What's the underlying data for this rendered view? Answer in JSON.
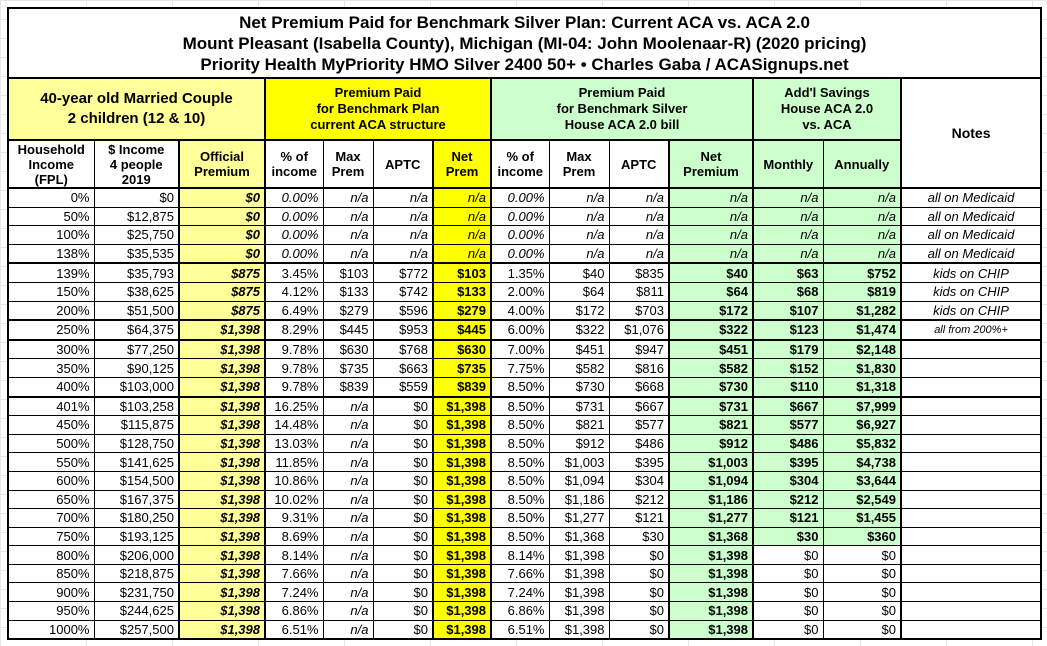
{
  "chart_data": {
    "type": "table",
    "title_lines": [
      "Net Premium Paid for Benchmark Silver Plan: Current ACA vs. ACA 2.0",
      "Mount Pleasant (Isabella County), Michigan (MI-04: John Moolenaar-R) (2020 pricing)",
      "Priority Health MyPriority HMO Silver 2400 50+ • Charles Gaba / ACASignups.net"
    ],
    "group_headers": {
      "household": "40-year old Married Couple\n2 children (12 & 10)",
      "current_aca": "Premium Paid\nfor Benchmark Plan\ncurrent ACA structure",
      "aca20": "Premium Paid\nfor Benchmark Silver\nHouse ACA 2.0 bill",
      "savings": "Add'l Savings\nHouse ACA 2.0\nvs. ACA",
      "notes": "Notes"
    },
    "columns": [
      "Household\nIncome\n(FPL)",
      "$ Income\n4 people\n2019",
      "Official\nPremium",
      "% of\nincome",
      "Max\nPrem",
      "APTC",
      "Net\nPrem",
      "% of\nincome",
      "Max\nPrem",
      "APTC",
      "Net\nPremium",
      "Monthly",
      "Annually"
    ],
    "rows": [
      {
        "fpl": "0%",
        "income": "$0",
        "official": "$0",
        "pct1": "0.00%",
        "max1": "n/a",
        "aptc1": "n/a",
        "net1": "n/a",
        "pct2": "0.00%",
        "max2": "n/a",
        "aptc2": "n/a",
        "net2": "n/a",
        "monthly": "n/a",
        "annually": "n/a",
        "note": "all on Medicaid",
        "na": true
      },
      {
        "fpl": "50%",
        "income": "$12,875",
        "official": "$0",
        "pct1": "0.00%",
        "max1": "n/a",
        "aptc1": "n/a",
        "net1": "n/a",
        "pct2": "0.00%",
        "max2": "n/a",
        "aptc2": "n/a",
        "net2": "n/a",
        "monthly": "n/a",
        "annually": "n/a",
        "note": "all on Medicaid",
        "na": true
      },
      {
        "fpl": "100%",
        "income": "$25,750",
        "official": "$0",
        "pct1": "0.00%",
        "max1": "n/a",
        "aptc1": "n/a",
        "net1": "n/a",
        "pct2": "0.00%",
        "max2": "n/a",
        "aptc2": "n/a",
        "net2": "n/a",
        "monthly": "n/a",
        "annually": "n/a",
        "note": "all on Medicaid",
        "na": true
      },
      {
        "fpl": "138%",
        "income": "$35,535",
        "official": "$0",
        "pct1": "0.00%",
        "max1": "n/a",
        "aptc1": "n/a",
        "net1": "n/a",
        "pct2": "0.00%",
        "max2": "n/a",
        "aptc2": "n/a",
        "net2": "n/a",
        "monthly": "n/a",
        "annually": "n/a",
        "note": "all on Medicaid",
        "na": true,
        "group_end": true
      },
      {
        "fpl": "139%",
        "income": "$35,793",
        "official": "$875",
        "pct1": "3.45%",
        "max1": "$103",
        "aptc1": "$772",
        "net1": "$103",
        "pct2": "1.35%",
        "max2": "$40",
        "aptc2": "$835",
        "net2": "$40",
        "monthly": "$63",
        "annually": "$752",
        "note": "kids on CHIP"
      },
      {
        "fpl": "150%",
        "income": "$38,625",
        "official": "$875",
        "pct1": "4.12%",
        "max1": "$133",
        "aptc1": "$742",
        "net1": "$133",
        "pct2": "2.00%",
        "max2": "$64",
        "aptc2": "$811",
        "net2": "$64",
        "monthly": "$68",
        "annually": "$819",
        "note": "kids on CHIP"
      },
      {
        "fpl": "200%",
        "income": "$51,500",
        "official": "$875",
        "pct1": "6.49%",
        "max1": "$279",
        "aptc1": "$596",
        "net1": "$279",
        "pct2": "4.00%",
        "max2": "$172",
        "aptc2": "$703",
        "net2": "$172",
        "monthly": "$107",
        "annually": "$1,282",
        "note": "kids on CHIP",
        "group_end": true
      },
      {
        "fpl": "250%",
        "income": "$64,375",
        "official": "$1,398",
        "pct1": "8.29%",
        "max1": "$445",
        "aptc1": "$953",
        "net1": "$445",
        "pct2": "6.00%",
        "max2": "$322",
        "aptc2": "$1,076",
        "net2": "$322",
        "monthly": "$123",
        "annually": "$1,474",
        "note": "all from 200%+",
        "note_small": true,
        "group_end": true
      },
      {
        "fpl": "300%",
        "income": "$77,250",
        "official": "$1,398",
        "pct1": "9.78%",
        "max1": "$630",
        "aptc1": "$768",
        "net1": "$630",
        "pct2": "7.00%",
        "max2": "$451",
        "aptc2": "$947",
        "net2": "$451",
        "monthly": "$179",
        "annually": "$2,148",
        "note": ""
      },
      {
        "fpl": "350%",
        "income": "$90,125",
        "official": "$1,398",
        "pct1": "9.78%",
        "max1": "$735",
        "aptc1": "$663",
        "net1": "$735",
        "pct2": "7.75%",
        "max2": "$582",
        "aptc2": "$816",
        "net2": "$582",
        "monthly": "$152",
        "annually": "$1,830",
        "note": ""
      },
      {
        "fpl": "400%",
        "income": "$103,000",
        "official": "$1,398",
        "pct1": "9.78%",
        "max1": "$839",
        "aptc1": "$559",
        "net1": "$839",
        "pct2": "8.50%",
        "max2": "$730",
        "aptc2": "$668",
        "net2": "$730",
        "monthly": "$110",
        "annually": "$1,318",
        "note": "",
        "group_end": true
      },
      {
        "fpl": "401%",
        "income": "$103,258",
        "official": "$1,398",
        "pct1": "16.25%",
        "max1": "n/a",
        "aptc1": "$0",
        "net1": "$1,398",
        "pct2": "8.50%",
        "max2": "$731",
        "aptc2": "$667",
        "net2": "$731",
        "monthly": "$667",
        "annually": "$7,999",
        "note": ""
      },
      {
        "fpl": "450%",
        "income": "$115,875",
        "official": "$1,398",
        "pct1": "14.48%",
        "max1": "n/a",
        "aptc1": "$0",
        "net1": "$1,398",
        "pct2": "8.50%",
        "max2": "$821",
        "aptc2": "$577",
        "net2": "$821",
        "monthly": "$577",
        "annually": "$6,927",
        "note": ""
      },
      {
        "fpl": "500%",
        "income": "$128,750",
        "official": "$1,398",
        "pct1": "13.03%",
        "max1": "n/a",
        "aptc1": "$0",
        "net1": "$1,398",
        "pct2": "8.50%",
        "max2": "$912",
        "aptc2": "$486",
        "net2": "$912",
        "monthly": "$486",
        "annually": "$5,832",
        "note": ""
      },
      {
        "fpl": "550%",
        "income": "$141,625",
        "official": "$1,398",
        "pct1": "11.85%",
        "max1": "n/a",
        "aptc1": "$0",
        "net1": "$1,398",
        "pct2": "8.50%",
        "max2": "$1,003",
        "aptc2": "$395",
        "net2": "$1,003",
        "monthly": "$395",
        "annually": "$4,738",
        "note": ""
      },
      {
        "fpl": "600%",
        "income": "$154,500",
        "official": "$1,398",
        "pct1": "10.86%",
        "max1": "n/a",
        "aptc1": "$0",
        "net1": "$1,398",
        "pct2": "8.50%",
        "max2": "$1,094",
        "aptc2": "$304",
        "net2": "$1,094",
        "monthly": "$304",
        "annually": "$3,644",
        "note": ""
      },
      {
        "fpl": "650%",
        "income": "$167,375",
        "official": "$1,398",
        "pct1": "10.02%",
        "max1": "n/a",
        "aptc1": "$0",
        "net1": "$1,398",
        "pct2": "8.50%",
        "max2": "$1,186",
        "aptc2": "$212",
        "net2": "$1,186",
        "monthly": "$212",
        "annually": "$2,549",
        "note": ""
      },
      {
        "fpl": "700%",
        "income": "$180,250",
        "official": "$1,398",
        "pct1": "9.31%",
        "max1": "n/a",
        "aptc1": "$0",
        "net1": "$1,398",
        "pct2": "8.50%",
        "max2": "$1,277",
        "aptc2": "$121",
        "net2": "$1,277",
        "monthly": "$121",
        "annually": "$1,455",
        "note": ""
      },
      {
        "fpl": "750%",
        "income": "$193,125",
        "official": "$1,398",
        "pct1": "8.69%",
        "max1": "n/a",
        "aptc1": "$0",
        "net1": "$1,398",
        "pct2": "8.50%",
        "max2": "$1,368",
        "aptc2": "$30",
        "net2": "$1,368",
        "monthly": "$30",
        "annually": "$360",
        "note": ""
      },
      {
        "fpl": "800%",
        "income": "$206,000",
        "official": "$1,398",
        "pct1": "8.14%",
        "max1": "n/a",
        "aptc1": "$0",
        "net1": "$1,398",
        "pct2": "8.14%",
        "max2": "$1,398",
        "aptc2": "$0",
        "net2": "$1,398",
        "monthly": "$0",
        "annually": "$0",
        "note": "",
        "zero": true
      },
      {
        "fpl": "850%",
        "income": "$218,875",
        "official": "$1,398",
        "pct1": "7.66%",
        "max1": "n/a",
        "aptc1": "$0",
        "net1": "$1,398",
        "pct2": "7.66%",
        "max2": "$1,398",
        "aptc2": "$0",
        "net2": "$1,398",
        "monthly": "$0",
        "annually": "$0",
        "note": "",
        "zero": true
      },
      {
        "fpl": "900%",
        "income": "$231,750",
        "official": "$1,398",
        "pct1": "7.24%",
        "max1": "n/a",
        "aptc1": "$0",
        "net1": "$1,398",
        "pct2": "7.24%",
        "max2": "$1,398",
        "aptc2": "$0",
        "net2": "$1,398",
        "monthly": "$0",
        "annually": "$0",
        "note": "",
        "zero": true
      },
      {
        "fpl": "950%",
        "income": "$244,625",
        "official": "$1,398",
        "pct1": "6.86%",
        "max1": "n/a",
        "aptc1": "$0",
        "net1": "$1,398",
        "pct2": "6.86%",
        "max2": "$1,398",
        "aptc2": "$0",
        "net2": "$1,398",
        "monthly": "$0",
        "annually": "$0",
        "note": "",
        "zero": true
      },
      {
        "fpl": "1000%",
        "income": "$257,500",
        "official": "$1,398",
        "pct1": "6.51%",
        "max1": "n/a",
        "aptc1": "$0",
        "net1": "$1,398",
        "pct2": "6.51%",
        "max2": "$1,398",
        "aptc2": "$0",
        "net2": "$1,398",
        "monthly": "$0",
        "annually": "$0",
        "note": "",
        "zero": true
      }
    ],
    "colors": {
      "pale_yellow": "#FFFF99",
      "bright_yellow": "#FFFF00",
      "light_green": "#CCFFCC",
      "border": "#000000",
      "sheet_grid": "#E6E6E6"
    },
    "layout_hints": {
      "grid": "on",
      "thick_row_separators_after_fpl": [
        "138%",
        "200%",
        "250%",
        "400%"
      ],
      "highlighted_columns": [
        "Official Premium",
        "Net Prem (current ACA)",
        "Net Premium (ACA 2.0)",
        "Monthly",
        "Annually"
      ]
    }
  }
}
